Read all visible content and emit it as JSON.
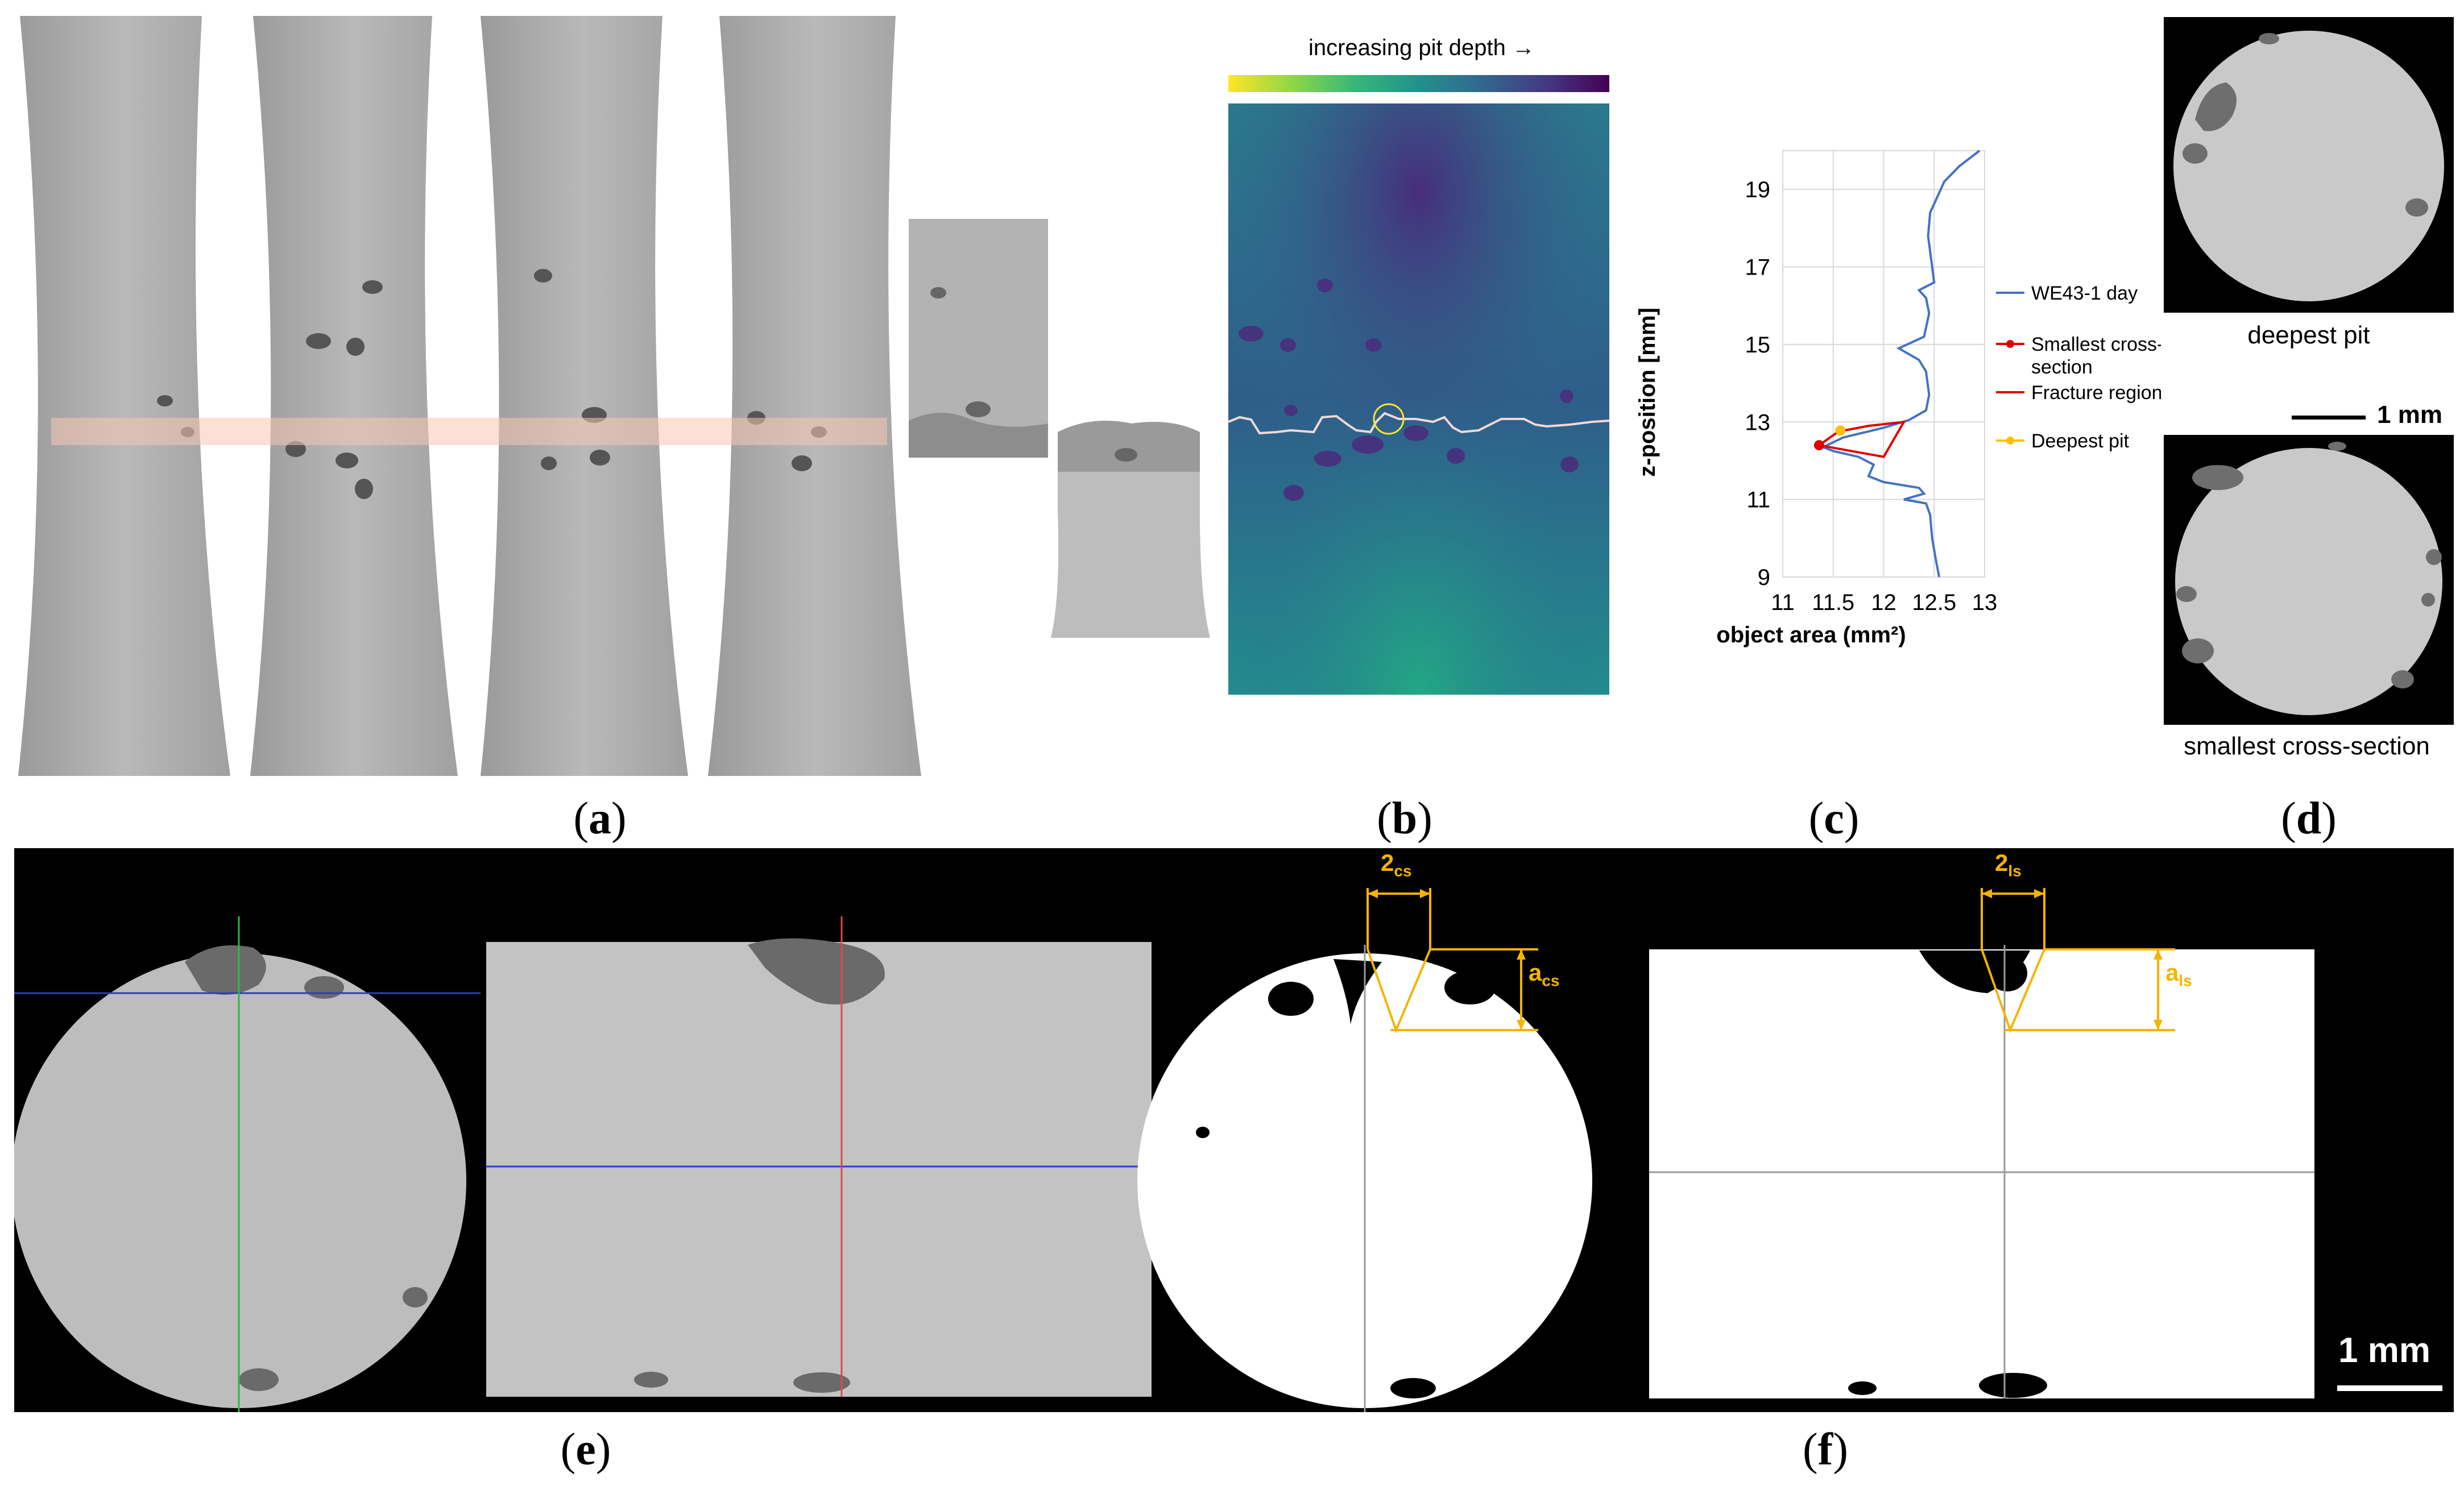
{
  "captions": {
    "a": "a",
    "b": "b",
    "c": "c",
    "d": "d",
    "e": "e",
    "f": "f"
  },
  "panel_b": {
    "colorbar_label": "increasing pit depth →",
    "colormap": [
      "#fde725",
      "#5ec962",
      "#21918c",
      "#3b528b",
      "#440154"
    ]
  },
  "chart_data": {
    "type": "line",
    "xlabel": "object area (mm²)",
    "ylabel": "z-position [mm]",
    "xlim": [
      11,
      13
    ],
    "ylim": [
      9,
      20
    ],
    "xticks": [
      "11",
      "11.5",
      "12",
      "12.5",
      "13"
    ],
    "yticks": [
      "9",
      "11",
      "13",
      "15",
      "17",
      "19"
    ],
    "grid": true,
    "legend_placement": "right",
    "series": [
      {
        "name": "WE43-1 day",
        "color": "#4472c4",
        "points": [
          [
            12.55,
            9.0
          ],
          [
            12.52,
            9.4
          ],
          [
            12.48,
            10.0
          ],
          [
            12.46,
            10.6
          ],
          [
            12.42,
            10.9
          ],
          [
            12.2,
            11.0
          ],
          [
            12.4,
            11.15
          ],
          [
            12.35,
            11.3
          ],
          [
            12.0,
            11.45
          ],
          [
            11.85,
            11.6
          ],
          [
            11.9,
            11.9
          ],
          [
            11.75,
            12.1
          ],
          [
            11.5,
            12.25
          ],
          [
            11.4,
            12.35
          ],
          [
            11.6,
            12.6
          ],
          [
            12.0,
            12.85
          ],
          [
            12.25,
            13.05
          ],
          [
            12.42,
            13.3
          ],
          [
            12.45,
            13.7
          ],
          [
            12.42,
            14.3
          ],
          [
            12.35,
            14.6
          ],
          [
            12.15,
            14.9
          ],
          [
            12.4,
            15.2
          ],
          [
            12.45,
            15.8
          ],
          [
            12.42,
            16.2
          ],
          [
            12.35,
            16.4
          ],
          [
            12.5,
            16.6
          ],
          [
            12.48,
            17.0
          ],
          [
            12.44,
            17.8
          ],
          [
            12.46,
            18.4
          ],
          [
            12.6,
            19.2
          ],
          [
            12.75,
            19.6
          ],
          [
            12.95,
            20.0
          ]
        ]
      },
      {
        "name": "Smallest cross-section",
        "color": "#e00000",
        "points": [
          [
            11.36,
            12.4
          ]
        ]
      },
      {
        "name": "Fracture region",
        "color": "#e00000",
        "points": [
          [
            11.36,
            12.4
          ],
          [
            11.55,
            12.75
          ],
          [
            11.85,
            12.9
          ],
          [
            12.2,
            13.0
          ],
          [
            12.0,
            12.1
          ],
          [
            11.36,
            12.4
          ]
        ]
      },
      {
        "name": "Deepest pit",
        "color": "#ffc000",
        "points": [
          [
            11.57,
            12.78
          ]
        ]
      }
    ]
  },
  "panel_d": {
    "top_label": "deepest pit",
    "scale_label": "1 mm",
    "bottom_label": "smallest cross-section"
  },
  "panel_f": {
    "cs_width_label": "2",
    "cs_width_sub": "cs",
    "cs_depth_label": "a",
    "cs_depth_sub": "cs",
    "ls_width_label": "2",
    "ls_width_sub": "ls",
    "ls_depth_label": "a",
    "ls_depth_sub": "ls",
    "scale_label": "1 mm",
    "annotation_color": "#f4b400"
  }
}
